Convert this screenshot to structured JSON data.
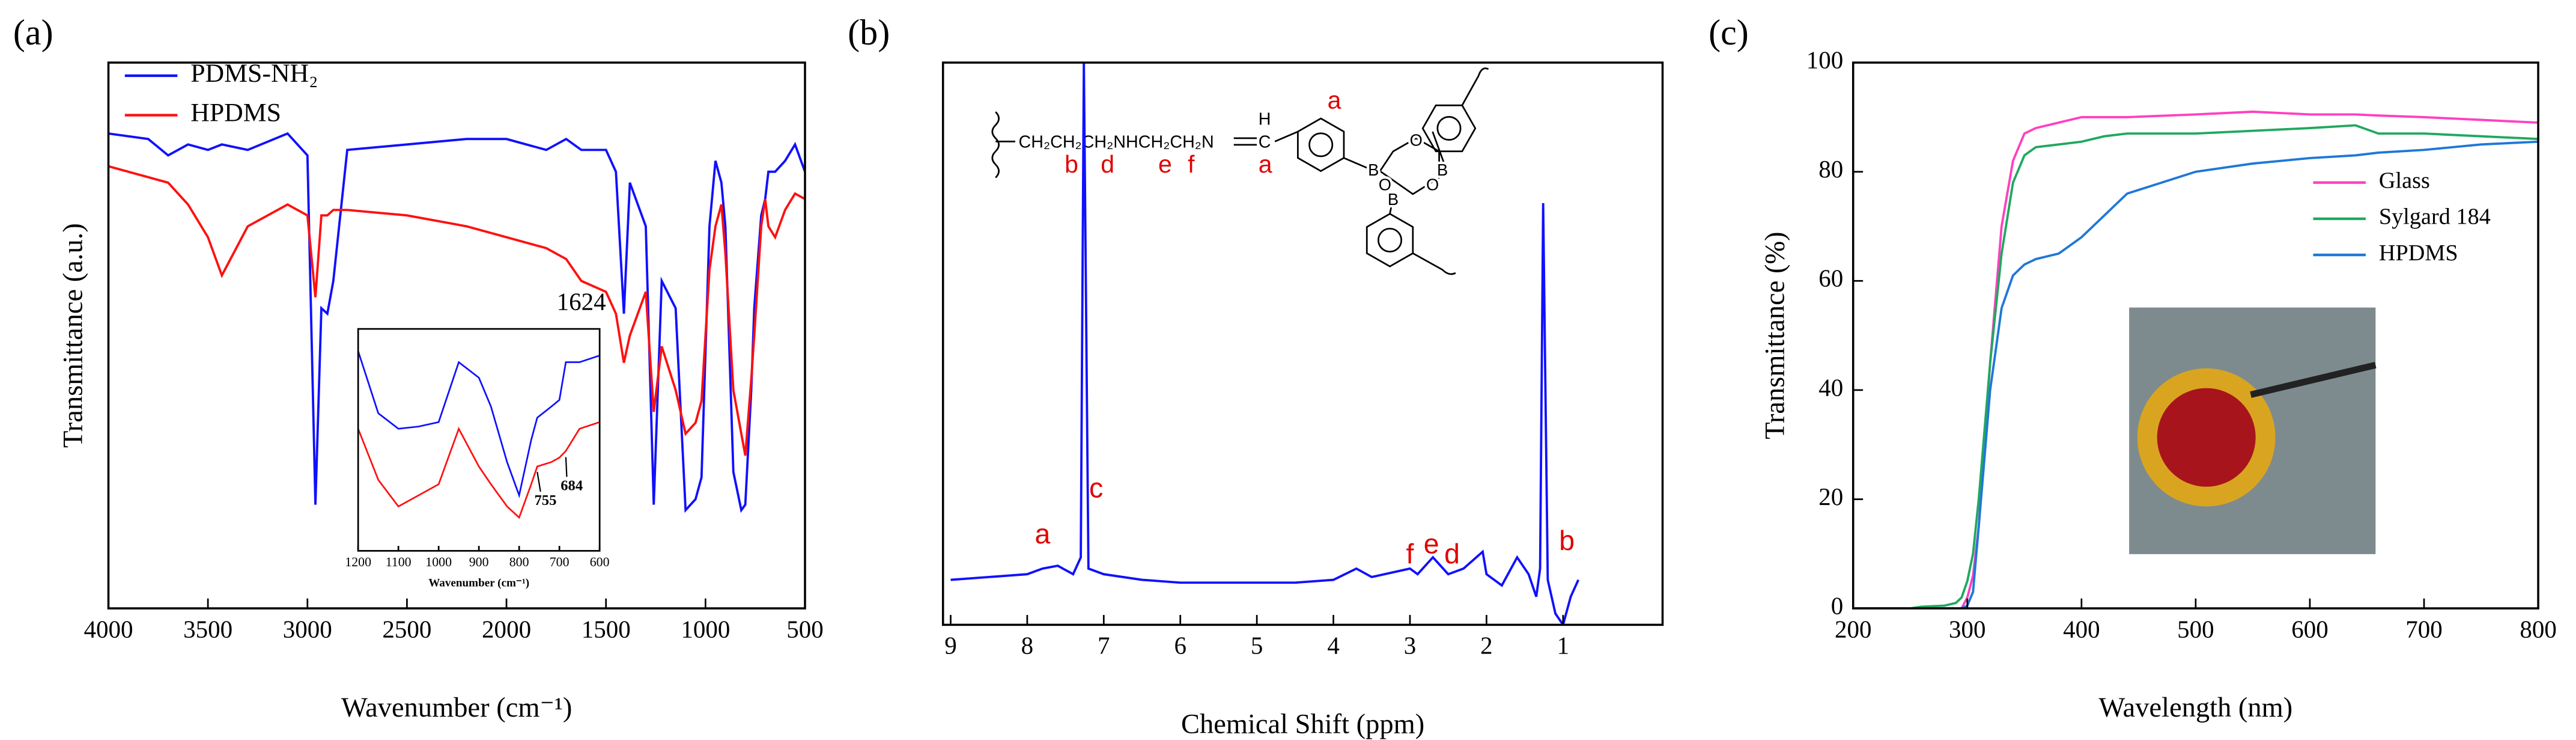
{
  "chart_data": [
    {
      "type": "line",
      "panel_label": "(a)",
      "xlabel": "Wavenumber (cm⁻¹)",
      "ylabel": "Transmittance (a.u.)",
      "xlim": [
        4000,
        500
      ],
      "xticks": [
        4000,
        3500,
        3000,
        2500,
        2000,
        1500,
        1000,
        500
      ],
      "ylim": [
        0,
        100
      ],
      "legend": "upper left",
      "x": [
        4000,
        3800,
        3700,
        3600,
        3500,
        3430,
        3300,
        3100,
        3000,
        2960,
        2930,
        2900,
        2870,
        2800,
        2500,
        2200,
        2000,
        1800,
        1700,
        1624,
        1500,
        1450,
        1410,
        1380,
        1300,
        1260,
        1220,
        1150,
        1100,
        1050,
        1020,
        980,
        950,
        920,
        900,
        860,
        820,
        800,
        770,
        755,
        720,
        700,
        684,
        650,
        600,
        550,
        500
      ],
      "series": [
        {
          "name": "PDMS-NH₂",
          "color": "#1010ff",
          "values": [
            87,
            86,
            83,
            85,
            84,
            85,
            84,
            87,
            83,
            19,
            55,
            54,
            60,
            84,
            85,
            86,
            86,
            84,
            86,
            84,
            84,
            80,
            54,
            78,
            70,
            19,
            60,
            55,
            18,
            20,
            24,
            70,
            82,
            78,
            70,
            25,
            18,
            19,
            40,
            55,
            72,
            75,
            80,
            80,
            82,
            85,
            80
          ]
        },
        {
          "name": "HPDMS",
          "color": "#ff1010",
          "values": [
            81,
            79,
            78,
            74,
            68,
            61,
            70,
            74,
            72,
            57,
            72,
            72,
            73,
            73,
            72,
            70,
            68,
            66,
            64,
            60,
            58,
            54,
            45,
            50,
            58,
            36,
            48,
            40,
            32,
            34,
            38,
            62,
            70,
            74,
            65,
            40,
            32,
            28,
            42,
            50,
            70,
            75,
            70,
            68,
            73,
            76,
            75
          ]
        }
      ],
      "annotations": [
        {
          "text": "1624",
          "x": 1624
        }
      ],
      "inset": {
        "xlabel": "Wavenumber (cm⁻¹)",
        "xlim": [
          1200,
          600
        ],
        "xticks": [
          1200,
          1100,
          1000,
          900,
          800,
          700,
          600
        ],
        "ylim": [
          0,
          100
        ],
        "x": [
          1200,
          1150,
          1100,
          1050,
          1000,
          950,
          900,
          870,
          830,
          800,
          770,
          755,
          720,
          700,
          684,
          650,
          600
        ],
        "series": [
          {
            "name": "PDMS-NH₂",
            "color": "#1010ff",
            "values": [
              90,
              62,
              55,
              56,
              58,
              85,
              78,
              65,
              40,
              25,
              50,
              60,
              65,
              68,
              85,
              85,
              88
            ]
          },
          {
            "name": "HPDMS",
            "color": "#ff1010",
            "values": [
              55,
              32,
              20,
              25,
              30,
              55,
              38,
              30,
              20,
              15,
              30,
              38,
              40,
              42,
              45,
              55,
              58
            ]
          }
        ],
        "annotations": [
          {
            "text": "755",
            "x": 755
          },
          {
            "text": "684",
            "x": 684
          }
        ]
      }
    },
    {
      "type": "line",
      "panel_label": "(b)",
      "xlabel": "Chemical Shift (ppm)",
      "xlim": [
        9.1,
        -0.3
      ],
      "xticks": [
        9,
        8,
        7,
        6,
        5,
        4,
        3,
        2,
        1
      ],
      "ylim": [
        0,
        100
      ],
      "color": "#1010ff",
      "x": [
        9,
        8.5,
        8,
        7.8,
        7.6,
        7.4,
        7.3,
        7.26,
        7.2,
        7.0,
        6.5,
        6,
        5.5,
        5,
        4.5,
        4,
        3.7,
        3.5,
        3.0,
        2.9,
        2.7,
        2.5,
        2.3,
        2.05,
        2.0,
        1.8,
        1.6,
        1.45,
        1.35,
        1.3,
        1.26,
        1.2,
        1.1,
        1.0,
        0.9,
        0.8
      ],
      "values": [
        8,
        8.5,
        9,
        10,
        10.5,
        9,
        12,
        100,
        10,
        9,
        8,
        7.5,
        7.5,
        7.5,
        7.5,
        8,
        10,
        8.5,
        10,
        9,
        12,
        9,
        10,
        13,
        9,
        7,
        12,
        9,
        5,
        10,
        75,
        8,
        2,
        0,
        5,
        8
      ],
      "annotations": [
        {
          "text": "a",
          "x": 7.8
        },
        {
          "text": "c",
          "x": 7.1
        },
        {
          "text": "f",
          "x": 3.0
        },
        {
          "text": "e",
          "x": 2.72
        },
        {
          "text": "d",
          "x": 2.45
        },
        {
          "text": "b",
          "x": 0.95
        }
      ],
      "structure": {
        "chain": "CH₂CH₂CH₂NHCH₂CH₂N",
        "imine_c": "C",
        "imine_h": "H",
        "labels": [
          "b",
          "d",
          "e",
          "f",
          "a",
          "a"
        ],
        "boron": "B",
        "oxygen": "O"
      }
    },
    {
      "type": "line",
      "panel_label": "(c)",
      "xlabel": "Wavelength (nm)",
      "ylabel": "Transmittance (%)",
      "xlim": [
        200,
        800
      ],
      "xticks": [
        200,
        300,
        400,
        500,
        600,
        700,
        800
      ],
      "ylim": [
        0,
        100
      ],
      "yticks": [
        0,
        20,
        40,
        60,
        80,
        100
      ],
      "legend": "upper right",
      "x": [
        200,
        250,
        260,
        280,
        290,
        295,
        300,
        305,
        310,
        320,
        330,
        340,
        350,
        360,
        380,
        400,
        420,
        440,
        500,
        550,
        600,
        640,
        660,
        700,
        750,
        800
      ],
      "series": [
        {
          "name": "Glass",
          "color": "#ff40c0",
          "values": [
            0,
            0,
            0,
            0,
            0,
            0,
            2,
            6,
            15,
            45,
            70,
            82,
            87,
            88,
            89,
            90,
            90,
            90,
            90.5,
            91,
            90.5,
            90.5,
            90.3,
            90,
            89.5,
            89
          ]
        },
        {
          "name": "Sylgard 184",
          "color": "#20a860",
          "values": [
            0,
            0,
            0.3,
            0.5,
            1,
            2,
            5,
            10,
            20,
            45,
            65,
            78,
            83,
            84.5,
            85,
            85.5,
            86.5,
            87,
            87,
            87.5,
            88,
            88.5,
            87,
            87,
            86.5,
            86
          ]
        },
        {
          "name": "HPDMS",
          "color": "#1e78d8",
          "values": [
            0,
            0,
            0,
            0,
            0,
            0,
            0.5,
            3,
            15,
            40,
            55,
            61,
            63,
            64,
            65,
            68,
            72,
            76,
            80,
            81.5,
            82.5,
            83,
            83.5,
            84,
            85,
            85.5
          ]
        }
      ]
    }
  ]
}
